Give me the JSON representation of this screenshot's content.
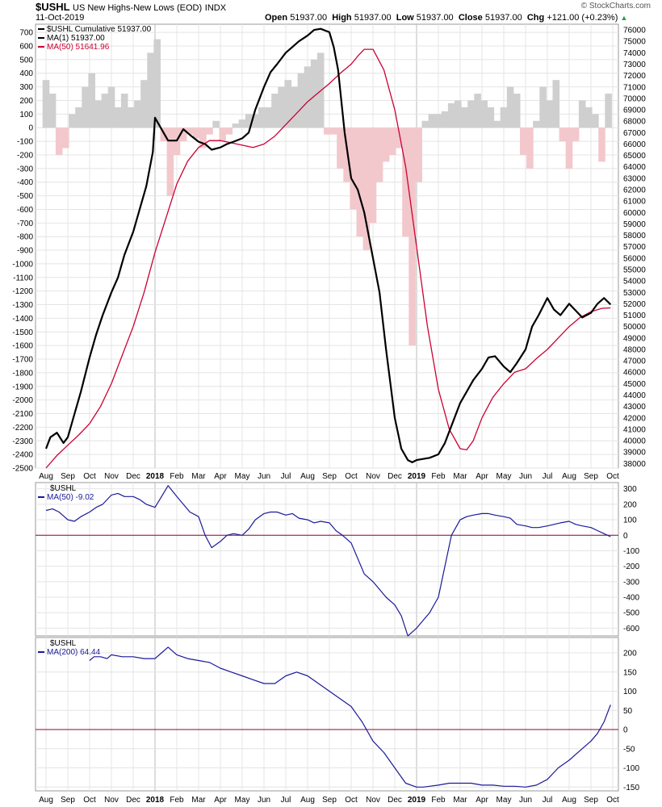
{
  "header": {
    "symbol": "$USHL",
    "description": "US New Highs-New Lows (EOD)",
    "exchange": "INDX",
    "date": "11-Oct-2019",
    "open_label": "Open",
    "open_value": "51937.00",
    "high_label": "High",
    "high_value": "51937.00",
    "low_label": "Low",
    "low_value": "51937.00",
    "close_label": "Close",
    "close_value": "51937.00",
    "chg_label": "Chg",
    "chg_value": "+121.00 (+0.23%)",
    "chg_arrow": "▲",
    "credit": "© StockCharts.com"
  },
  "colors": {
    "price": "#000000",
    "ma_red": "#cc0033",
    "osc_blue": "#1a1a99",
    "zero_line": "#990033",
    "hist_pos": "#cfcfcf",
    "hist_neg": "#f2c8cc",
    "grid": "#e4e4e4"
  },
  "chart_data": [
    {
      "type": "line",
      "panel": "main",
      "legend": [
        {
          "text": "$USHL Cumulative 51937.00",
          "color": "#000000"
        },
        {
          "text": "MA(1) 51937.00",
          "color": "#000000"
        },
        {
          "text": "MA(50) 51641.96",
          "color": "#cc0033"
        }
      ],
      "left_axis_ticks": [
        700,
        600,
        500,
        400,
        300,
        200,
        100,
        0,
        -100,
        -200,
        -300,
        -400,
        -500,
        -600,
        -700,
        -800,
        -900,
        -1000,
        -1100,
        -1200,
        -1300,
        -1400,
        -1500,
        -1600,
        -1700,
        -1800,
        -1900,
        -2000,
        -2100,
        -2200,
        -2300,
        -2400,
        -2500
      ],
      "right_axis_ticks": [
        76000,
        75000,
        74000,
        73000,
        72000,
        71000,
        70000,
        69000,
        68000,
        67000,
        66000,
        65000,
        64000,
        63000,
        62000,
        61000,
        60000,
        59000,
        58000,
        57000,
        56000,
        55000,
        54000,
        53000,
        52000,
        51000,
        50000,
        49000,
        48000,
        47000,
        46000,
        45000,
        44000,
        43000,
        42000,
        41000,
        40000,
        39000,
        38000
      ],
      "ylim_right": [
        37600,
        76500
      ],
      "ylim_left": [
        -2500,
        760
      ],
      "x_ticks": [
        "Aug",
        "Sep",
        "Oct",
        "Nov",
        "Dec",
        "2018",
        "Feb",
        "Mar",
        "Apr",
        "May",
        "Jun",
        "Jul",
        "Aug",
        "Sep",
        "Oct",
        "Nov",
        "Dec",
        "2019",
        "Feb",
        "Mar",
        "Apr",
        "May",
        "Jun",
        "Jul",
        "Aug",
        "Sep",
        "Oct"
      ],
      "x_tick_index": [
        0,
        1,
        2,
        3,
        4,
        5,
        6,
        7,
        8,
        9,
        10,
        11,
        12,
        13,
        14,
        15,
        16,
        17,
        18,
        19,
        20,
        21,
        22,
        23,
        24,
        25,
        26
      ],
      "x_bold_ticks": [
        "2018",
        "2019"
      ],
      "cumulative": {
        "x": [
          0,
          0.2,
          0.5,
          0.8,
          1.0,
          1.3,
          1.6,
          2.0,
          2.3,
          2.6,
          3.0,
          3.3,
          3.6,
          4.0,
          4.3,
          4.6,
          4.9,
          5.0,
          5.3,
          5.6,
          6.0,
          6.3,
          6.6,
          7.0,
          7.3,
          7.6,
          8.0,
          8.3,
          8.6,
          9.0,
          9.3,
          9.6,
          10.0,
          10.3,
          10.6,
          11.0,
          11.3,
          11.6,
          12.0,
          12.3,
          12.6,
          13.0,
          13.2,
          13.4,
          13.7,
          14.0,
          14.3,
          14.6,
          15.0,
          15.3,
          15.6,
          16.0,
          16.3,
          16.6,
          16.8,
          17.0,
          17.3,
          17.6,
          18.0,
          18.3,
          18.6,
          19.0,
          19.3,
          19.6,
          20.0,
          20.3,
          20.6,
          21.0,
          21.3,
          21.6,
          22.0,
          22.3,
          22.6,
          23.0,
          23.3,
          23.6,
          24.0,
          24.3,
          24.6,
          25.0,
          25.3,
          25.6,
          25.9
        ],
        "values": [
          39300,
          40300,
          40700,
          39800,
          40300,
          42300,
          44300,
          47300,
          49300,
          51000,
          53000,
          54300,
          56300,
          58300,
          60300,
          62300,
          65300,
          68300,
          67300,
          66300,
          66300,
          67300,
          66800,
          66200,
          66000,
          65500,
          65700,
          66000,
          66200,
          66500,
          67000,
          69000,
          71000,
          72300,
          73000,
          74000,
          74500,
          75000,
          75500,
          76000,
          76100,
          75800,
          74500,
          72500,
          67000,
          63000,
          62000,
          60000,
          56000,
          53000,
          48000,
          42000,
          39300,
          38300,
          38100,
          38300,
          38400,
          38500,
          38800,
          39800,
          41300,
          43300,
          44300,
          45300,
          46300,
          47300,
          47400,
          46500,
          46000,
          46800,
          48000,
          50000,
          51000,
          52500,
          51500,
          51000,
          52000,
          51400,
          50800,
          51200,
          52000,
          52500,
          51937
        ]
      },
      "ma50": {
        "x": [
          0,
          0.5,
          1.0,
          1.5,
          2.0,
          2.5,
          3.0,
          3.5,
          4.0,
          4.5,
          5.0,
          5.5,
          6.0,
          6.5,
          7.0,
          7.5,
          8.0,
          8.5,
          9.0,
          9.5,
          10.0,
          10.5,
          11.0,
          11.5,
          12.0,
          12.5,
          13.0,
          13.5,
          14.0,
          14.3,
          14.6,
          15.0,
          15.5,
          16.0,
          16.5,
          17.0,
          17.5,
          18.0,
          18.5,
          19.0,
          19.3,
          19.6,
          20.0,
          20.5,
          21.0,
          21.5,
          22.0,
          22.5,
          23.0,
          23.5,
          24.0,
          24.5,
          25.0,
          25.5,
          25.9
        ],
        "values": [
          37600,
          38700,
          39600,
          40500,
          41500,
          43000,
          45000,
          47500,
          50000,
          53000,
          56500,
          59500,
          62500,
          64500,
          65700,
          66300,
          66300,
          66100,
          65900,
          65700,
          66000,
          66700,
          67700,
          68700,
          69700,
          70500,
          71300,
          72200,
          73000,
          73700,
          74300,
          74300,
          72500,
          69000,
          64000,
          57000,
          50000,
          44500,
          41000,
          39300,
          39200,
          40000,
          42000,
          43800,
          45000,
          46000,
          46300,
          47200,
          48000,
          49000,
          50000,
          50800,
          51300,
          51600,
          51642
        ]
      },
      "histogram_nhnl": {
        "x": [
          0,
          0.3,
          0.6,
          0.9,
          1.2,
          1.5,
          1.8,
          2.1,
          2.4,
          2.7,
          3.0,
          3.3,
          3.6,
          3.9,
          4.2,
          4.5,
          4.8,
          5.1,
          5.4,
          5.7,
          6.0,
          6.3,
          6.6,
          6.9,
          7.2,
          7.5,
          7.8,
          8.1,
          8.4,
          8.7,
          9.0,
          9.3,
          9.6,
          9.9,
          10.2,
          10.5,
          10.8,
          11.1,
          11.4,
          11.7,
          12.0,
          12.3,
          12.6,
          12.9,
          13.2,
          13.5,
          13.8,
          14.1,
          14.4,
          14.7,
          15.0,
          15.3,
          15.6,
          15.9,
          16.2,
          16.5,
          16.8,
          17.1,
          17.4,
          17.7,
          18.0,
          18.3,
          18.6,
          18.9,
          19.2,
          19.5,
          19.8,
          20.1,
          20.4,
          20.7,
          21.0,
          21.3,
          21.6,
          21.9,
          22.2,
          22.5,
          22.8,
          23.1,
          23.4,
          23.7,
          24.0,
          24.3,
          24.6,
          24.9,
          25.2,
          25.5,
          25.8
        ],
        "values": [
          350,
          250,
          -200,
          -150,
          100,
          150,
          300,
          400,
          200,
          250,
          300,
          150,
          250,
          150,
          200,
          350,
          550,
          650,
          -100,
          -500,
          -200,
          -100,
          -50,
          -80,
          -150,
          -50,
          50,
          -100,
          -50,
          30,
          60,
          100,
          100,
          150,
          150,
          250,
          300,
          350,
          300,
          400,
          450,
          500,
          550,
          -50,
          -50,
          -300,
          -400,
          -600,
          -800,
          -900,
          -700,
          -400,
          -250,
          -200,
          -150,
          -800,
          -1600,
          -400,
          50,
          100,
          100,
          120,
          180,
          200,
          150,
          200,
          250,
          200,
          150,
          50,
          150,
          300,
          250,
          -200,
          -300,
          50,
          300,
          200,
          350,
          -100,
          -300,
          -100,
          200,
          150,
          100,
          -250,
          250
        ]
      }
    },
    {
      "type": "line",
      "panel": "osc1",
      "legend": [
        {
          "text": "$USHL",
          "color": "#000000"
        },
        {
          "text": "MA(50) -9.02",
          "color": "#1a1a99"
        }
      ],
      "right_axis_ticks": [
        300,
        200,
        100,
        0,
        -100,
        -200,
        -300,
        -400,
        -500,
        -600
      ],
      "ylim": [
        -650,
        340
      ],
      "series": [
        {
          "name": "MA(50)",
          "x": [
            0,
            0.3,
            0.6,
            1.0,
            1.3,
            1.6,
            2.0,
            2.3,
            2.6,
            3.0,
            3.3,
            3.6,
            4.0,
            4.3,
            4.6,
            5.0,
            5.3,
            5.6,
            6.0,
            6.3,
            6.6,
            7.0,
            7.3,
            7.6,
            8.0,
            8.3,
            8.6,
            9.0,
            9.3,
            9.6,
            10.0,
            10.3,
            10.6,
            11.0,
            11.3,
            11.6,
            12.0,
            12.3,
            12.6,
            13.0,
            13.3,
            13.6,
            14.0,
            14.3,
            14.6,
            15.0,
            15.3,
            15.6,
            16.0,
            16.3,
            16.6,
            17.0,
            17.3,
            17.6,
            18.0,
            18.3,
            18.6,
            19.0,
            19.3,
            19.6,
            20.0,
            20.3,
            20.6,
            21.0,
            21.3,
            21.6,
            22.0,
            22.3,
            22.6,
            23.0,
            23.3,
            23.6,
            24.0,
            24.3,
            24.6,
            25.0,
            25.3,
            25.6,
            25.9
          ],
          "values": [
            160,
            170,
            150,
            100,
            90,
            120,
            150,
            180,
            200,
            260,
            270,
            250,
            250,
            230,
            200,
            180,
            250,
            320,
            250,
            200,
            150,
            120,
            0,
            -80,
            -40,
            0,
            10,
            0,
            40,
            100,
            140,
            150,
            150,
            130,
            140,
            110,
            100,
            80,
            90,
            80,
            30,
            0,
            -50,
            -150,
            -250,
            -300,
            -350,
            -400,
            -450,
            -520,
            -650,
            -600,
            -550,
            -500,
            -400,
            -200,
            0,
            100,
            120,
            130,
            140,
            140,
            130,
            120,
            110,
            70,
            60,
            50,
            50,
            60,
            70,
            80,
            90,
            70,
            60,
            50,
            30,
            10,
            -9
          ]
        }
      ]
    },
    {
      "type": "line",
      "panel": "osc2",
      "legend": [
        {
          "text": "$USHL",
          "color": "#000000"
        },
        {
          "text": "MA(200) 64.44",
          "color": "#1a1a99"
        }
      ],
      "right_axis_ticks": [
        200,
        150,
        100,
        50,
        0,
        -50,
        -100,
        -150
      ],
      "ylim": [
        -160,
        240
      ],
      "series": [
        {
          "name": "MA(200)",
          "x": [
            2.0,
            2.2,
            2.5,
            2.8,
            3.0,
            3.5,
            4.0,
            4.5,
            5.0,
            5.3,
            5.6,
            6.0,
            6.5,
            7.0,
            7.5,
            8.0,
            8.5,
            9.0,
            9.5,
            10.0,
            10.5,
            11.0,
            11.5,
            12.0,
            12.5,
            13.0,
            13.5,
            14.0,
            14.5,
            15.0,
            15.5,
            16.0,
            16.5,
            17.0,
            17.3,
            17.6,
            18.0,
            18.5,
            19.0,
            19.5,
            20.0,
            20.5,
            21.0,
            21.5,
            22.0,
            22.5,
            23.0,
            23.5,
            24.0,
            24.5,
            25.0,
            25.3,
            25.6,
            25.9
          ],
          "values": [
            180,
            190,
            190,
            185,
            195,
            190,
            190,
            185,
            185,
            200,
            215,
            195,
            185,
            180,
            175,
            160,
            150,
            140,
            130,
            120,
            120,
            140,
            150,
            140,
            120,
            100,
            80,
            60,
            20,
            -30,
            -60,
            -100,
            -140,
            -150,
            -150,
            -148,
            -145,
            -140,
            -140,
            -140,
            -145,
            -145,
            -148,
            -148,
            -150,
            -145,
            -130,
            -100,
            -80,
            -55,
            -30,
            -10,
            20,
            64.44
          ]
        }
      ]
    }
  ]
}
